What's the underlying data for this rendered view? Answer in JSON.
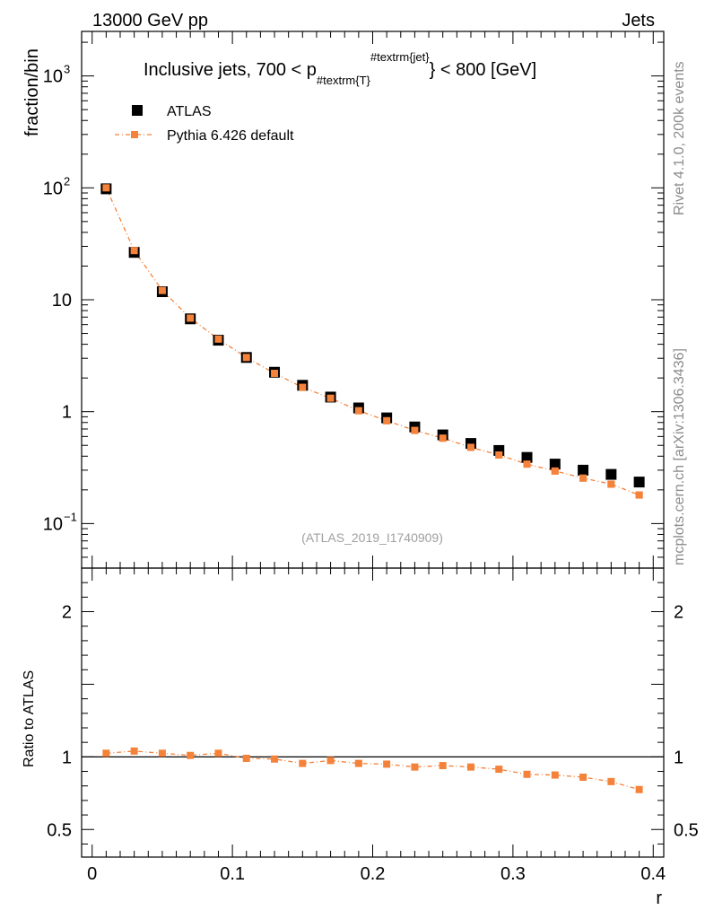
{
  "header": {
    "left": "13000 GeV pp",
    "right": "Jets"
  },
  "side_text": {
    "rivet": "Rivet 4.1.0,  200k events",
    "mcplots": "mcplots.cern.ch [arXiv:1306.3436]"
  },
  "title": {
    "main": "Inclusive jets, 700 < p",
    "sub": "#textrm{T}",
    "sup": "#textrm{jet}",
    "tail": "} < 800 [GeV]"
  },
  "analysis_tag": "(ATLAS_2019_I1740909)",
  "colors": {
    "data": "#000000",
    "mc": "#f5823a",
    "side": "#8c8c8c",
    "tag": "#a0a0a0"
  },
  "chart_data": [
    {
      "type": "scatter",
      "panel": "main",
      "ylabel": "fraction/bin",
      "xlabel": "",
      "yscale": "log",
      "ylim": [
        0.04,
        2500
      ],
      "xlim": [
        -0.0075,
        0.4075
      ],
      "yticks": [
        {
          "value": 1000,
          "label": "10",
          "exp": "3"
        },
        {
          "value": 100,
          "label": "10",
          "exp": "2"
        },
        {
          "value": 10,
          "label": "10",
          "exp": ""
        },
        {
          "value": 1,
          "label": "1",
          "exp": ""
        },
        {
          "value": 0.1,
          "label": "10",
          "exp": "−1"
        }
      ],
      "legend": {
        "position": "top-left",
        "entries": [
          "ATLAS",
          "Pythia 6.426 default"
        ]
      },
      "x": [
        0.01,
        0.03,
        0.05,
        0.07,
        0.09,
        0.11,
        0.13,
        0.15,
        0.17,
        0.19,
        0.21,
        0.23,
        0.25,
        0.27,
        0.29,
        0.31,
        0.33,
        0.35,
        0.37,
        0.39
      ],
      "series": [
        {
          "name": "ATLAS",
          "values": [
            98,
            26.5,
            11.8,
            6.75,
            4.35,
            3.05,
            2.25,
            1.72,
            1.35,
            1.08,
            0.88,
            0.73,
            0.62,
            0.52,
            0.45,
            0.39,
            0.34,
            0.3,
            0.275,
            0.235
          ]
        },
        {
          "name": "Pythia 6.426 default",
          "values": [
            100,
            27.5,
            12.1,
            6.85,
            4.45,
            3.05,
            2.2,
            1.65,
            1.32,
            1.02,
            0.83,
            0.68,
            0.58,
            0.48,
            0.41,
            0.34,
            0.295,
            0.255,
            0.225,
            0.18
          ]
        }
      ]
    },
    {
      "type": "line",
      "panel": "ratio",
      "ylabel": "Ratio to ATLAS",
      "xlabel": "r",
      "ylim": [
        0.31,
        2.3
      ],
      "xlim": [
        -0.0075,
        0.4075
      ],
      "xticks": [
        {
          "value": 0,
          "label": "0"
        },
        {
          "value": 0.1,
          "label": "0.1"
        },
        {
          "value": 0.2,
          "label": "0.2"
        },
        {
          "value": 0.3,
          "label": "0.3"
        },
        {
          "value": 0.4,
          "label": "0.4"
        }
      ],
      "yticks": [
        {
          "value": 2,
          "label": "2"
        },
        {
          "value": 1,
          "label": "1"
        },
        {
          "value": 0.5,
          "label": "0.5"
        }
      ],
      "reference": 1,
      "x": [
        0.01,
        0.03,
        0.05,
        0.07,
        0.09,
        0.11,
        0.13,
        0.15,
        0.17,
        0.19,
        0.21,
        0.23,
        0.25,
        0.27,
        0.29,
        0.31,
        0.33,
        0.35,
        0.37,
        0.39
      ],
      "series": [
        {
          "name": "Pythia 6.426 default",
          "values": [
            1.025,
            1.04,
            1.025,
            1.01,
            1.025,
            0.99,
            0.985,
            0.955,
            0.975,
            0.955,
            0.95,
            0.93,
            0.94,
            0.93,
            0.915,
            0.88,
            0.875,
            0.86,
            0.83,
            0.775
          ]
        }
      ]
    }
  ]
}
